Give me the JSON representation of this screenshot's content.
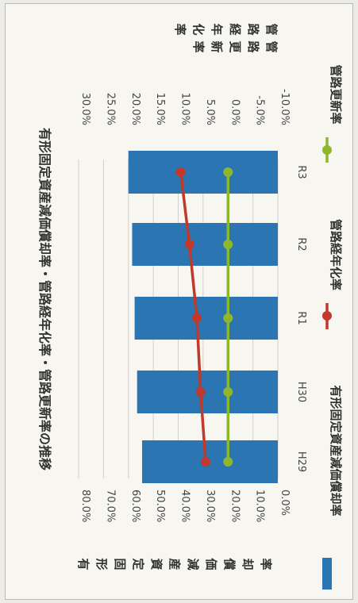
{
  "chart_data": {
    "type": "bar",
    "orientation": "rotated-90-clockwise",
    "title": "有形固定資産減価償却率・管路経年化率・管路更新率の推移",
    "categories": [
      "H29",
      "H30",
      "R1",
      "R2",
      "R3"
    ],
    "primary_axis": {
      "label": "有形固定資産減価償却率",
      "ylim": [
        0,
        80
      ],
      "ticks": [
        "0.0%",
        "10.0%",
        "20.0%",
        "30.0%",
        "40.0%",
        "50.0%",
        "60.0%",
        "70.0%",
        "80.0%"
      ]
    },
    "secondary_axis": {
      "label_1": "管路経年化率",
      "label_2": "管路更新率",
      "ylim": [
        -10,
        30
      ],
      "ticks": [
        "-10.0%",
        "-5.0%",
        "0.0%",
        "5.0%",
        "10.0%",
        "15.0%",
        "20.0%",
        "25.0%",
        "30.0%"
      ]
    },
    "series": [
      {
        "name": "有形固定資産減価償却率",
        "kind": "bar",
        "axis": "primary",
        "color": "#2b75b3",
        "values": [
          54.5,
          56.5,
          57.5,
          58.5,
          60.0
        ]
      },
      {
        "name": "管路経年化率",
        "kind": "line",
        "axis": "primary",
        "color": "#c0392b",
        "values": [
          29.0,
          31.0,
          32.5,
          35.5,
          39.0
        ]
      },
      {
        "name": "管路更新率",
        "kind": "line",
        "axis": "primary",
        "color": "#8db82e",
        "values": [
          20.0,
          20.0,
          20.0,
          20.0,
          20.0
        ]
      }
    ],
    "grid": true,
    "legend": "bottom"
  }
}
